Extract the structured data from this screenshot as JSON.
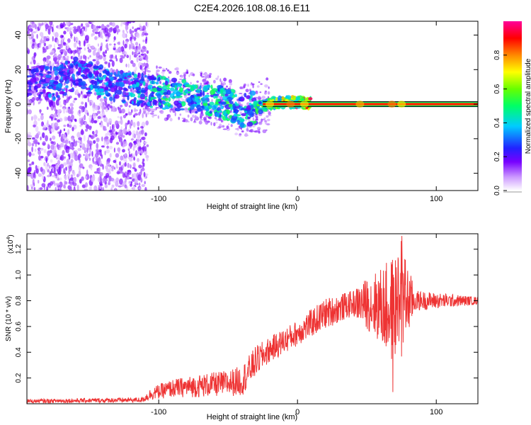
{
  "title": "C2E4.2026.108.08.16.E11",
  "chart_data": [
    {
      "type": "heatmap",
      "xlabel": "Height of straight line (km)",
      "ylabel": "Frequency (Hz)",
      "xlim": [
        -195,
        130
      ],
      "ylim": [
        -50,
        48
      ],
      "xticks": [
        -100,
        0,
        100
      ],
      "xtick_labels": [
        "-100",
        "0",
        "100"
      ],
      "yticks": [
        -40,
        -20,
        0,
        20,
        40
      ],
      "ytick_labels": [
        "-40",
        "-20",
        "0",
        "20",
        "40"
      ],
      "colorbar": {
        "label": "Normalized spectral amplitude",
        "range": [
          0,
          1
        ],
        "ticks": [
          0.0,
          0.2,
          0.4,
          0.6,
          0.8
        ],
        "tick_labels": [
          "0.0",
          "0.2",
          "0.4",
          "0.6",
          "0.8"
        ],
        "colors": [
          "#ffffff",
          "#cc99ff",
          "#7700ff",
          "#2222ff",
          "#00ccff",
          "#00ff66",
          "#66ff00",
          "#ffff00",
          "#ff8800",
          "#ff0000",
          "#ff0099"
        ]
      },
      "ridge": [
        {
          "x": -190,
          "f": 14,
          "a": 0.25
        },
        {
          "x": -175,
          "f": 12,
          "a": 0.35
        },
        {
          "x": -160,
          "f": 18,
          "a": 0.3
        },
        {
          "x": -145,
          "f": 14,
          "a": 0.4
        },
        {
          "x": -130,
          "f": 10,
          "a": 0.3
        },
        {
          "x": -110,
          "f": 8,
          "a": 0.45
        },
        {
          "x": -95,
          "f": 6,
          "a": 0.5
        },
        {
          "x": -80,
          "f": 5,
          "a": 0.45
        },
        {
          "x": -65,
          "f": 3,
          "a": 0.5
        },
        {
          "x": -50,
          "f": 0,
          "a": 0.5
        },
        {
          "x": -40,
          "f": -4,
          "a": 0.4
        },
        {
          "x": -30,
          "f": -2,
          "a": 0.5
        },
        {
          "x": -20,
          "f": 0,
          "a": 0.7
        },
        {
          "x": -10,
          "f": 1,
          "a": 0.8
        },
        {
          "x": 0,
          "f": 1,
          "a": 0.9
        },
        {
          "x": 20,
          "f": 0,
          "a": 0.95
        },
        {
          "x": 60,
          "f": 0,
          "a": 0.95
        },
        {
          "x": 130,
          "f": 0,
          "a": 0.95
        }
      ]
    },
    {
      "type": "line",
      "xlabel": "Height of straight line (km)",
      "ylabel": "SNR (10 * v/v)",
      "y_scale_label": "(x10",
      "y_scale_exp": "4",
      "y_scale_close": ")",
      "xlim": [
        -195,
        130
      ],
      "ylim": [
        0,
        1.32
      ],
      "xticks": [
        -100,
        0,
        100
      ],
      "xtick_labels": [
        "-100",
        "0",
        "100"
      ],
      "yticks": [
        0.2,
        0.4,
        0.6,
        0.8,
        1.0,
        1.2
      ],
      "ytick_labels": [
        "0.2",
        "0.4",
        "0.6",
        "0.8",
        "1.0",
        "1.2"
      ],
      "color": "#ee3333",
      "envelope": [
        {
          "x": -195,
          "mean": 0.02,
          "amp": 0.015
        },
        {
          "x": -112,
          "mean": 0.03,
          "amp": 0.02
        },
        {
          "x": -105,
          "mean": 0.08,
          "amp": 0.05
        },
        {
          "x": -90,
          "mean": 0.12,
          "amp": 0.07
        },
        {
          "x": -70,
          "mean": 0.14,
          "amp": 0.09
        },
        {
          "x": -50,
          "mean": 0.16,
          "amp": 0.1
        },
        {
          "x": -40,
          "mean": 0.18,
          "amp": 0.12
        },
        {
          "x": -30,
          "mean": 0.33,
          "amp": 0.12
        },
        {
          "x": -20,
          "mean": 0.42,
          "amp": 0.1
        },
        {
          "x": 0,
          "mean": 0.55,
          "amp": 0.1
        },
        {
          "x": 20,
          "mean": 0.7,
          "amp": 0.12
        },
        {
          "x": 40,
          "mean": 0.78,
          "amp": 0.1
        },
        {
          "x": 50,
          "mean": 0.78,
          "amp": 0.2
        },
        {
          "x": 60,
          "mean": 0.76,
          "amp": 0.3
        },
        {
          "x": 68,
          "mean": 0.72,
          "amp": 0.42
        },
        {
          "x": 75,
          "mean": 0.8,
          "amp": 0.45
        },
        {
          "x": 85,
          "mean": 0.8,
          "amp": 0.08
        },
        {
          "x": 130,
          "mean": 0.8,
          "amp": 0.03
        }
      ]
    }
  ]
}
